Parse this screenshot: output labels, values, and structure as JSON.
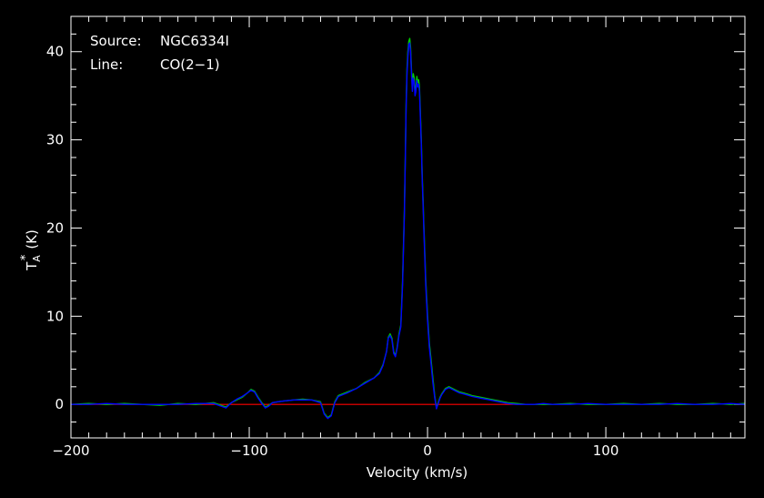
{
  "chart_data": {
    "type": "line",
    "title": "",
    "annotations": [
      {
        "key": "Source:",
        "value": "NGC6334I"
      },
      {
        "key": "Line:",
        "value": "CO(2−1)"
      }
    ],
    "xlabel": "Velocity (km/s)",
    "ylabel": {
      "base": "T",
      "subscript": "A",
      "superscript": "*",
      "unit": "(K)"
    },
    "xlim": [
      -200,
      178
    ],
    "ylim": [
      -3.8,
      44
    ],
    "grid": false,
    "background": "#000000",
    "axis_color": "#ffffff",
    "x_ticks": {
      "major": [
        -200,
        -100,
        0,
        100
      ],
      "labels": [
        "−200",
        "−100",
        "0",
        "100"
      ],
      "minor_step": 10
    },
    "y_ticks": {
      "major": [
        0,
        10,
        20,
        30,
        40
      ],
      "labels": [
        "0",
        "10",
        "20",
        "30",
        "40"
      ],
      "minor_step": 2
    },
    "baseline": {
      "name": "baseline",
      "color": "#ff0000",
      "x": [
        -200,
        60
      ],
      "y": [
        0,
        0
      ]
    },
    "series": [
      {
        "color": "#00cc00",
        "x": [
          -200,
          -190,
          -180,
          -170,
          -160,
          -150,
          -140,
          -130,
          -120,
          -113,
          -110,
          -107,
          -104,
          -101,
          -99,
          -97,
          -95,
          -93,
          -91,
          -89,
          -87,
          -84,
          -80,
          -75,
          -70,
          -65,
          -60,
          -58,
          -56,
          -54,
          -52,
          -50,
          -45,
          -40,
          -35,
          -30,
          -27,
          -25,
          -23,
          -22,
          -21,
          -20,
          -19,
          -18,
          -17,
          -16,
          -15,
          -14,
          -13,
          -12.5,
          -12,
          -11.5,
          -11,
          -10.5,
          -10,
          -9.5,
          -9,
          -8.5,
          -8,
          -7.5,
          -7,
          -6.5,
          -6,
          -5.5,
          -5,
          -4.5,
          -4,
          -3.5,
          -3,
          -2.5,
          -2,
          -1.5,
          -1,
          0,
          1,
          2,
          3,
          4,
          5,
          6,
          7,
          8,
          9,
          10,
          12,
          14,
          16,
          18,
          20,
          25,
          30,
          35,
          40,
          45,
          50,
          55,
          60,
          65,
          70,
          80,
          90,
          100,
          110,
          120,
          130,
          140,
          150,
          160,
          170,
          178
        ],
        "y": [
          0,
          0.1,
          0,
          0.1,
          0,
          -0.1,
          0.1,
          0,
          0.2,
          -0.3,
          0.2,
          0.5,
          0.8,
          1.3,
          1.7,
          1.5,
          0.8,
          0.2,
          -0.3,
          -0.1,
          0.2,
          0.3,
          0.4,
          0.5,
          0.6,
          0.5,
          0.3,
          -1.0,
          -1.5,
          -1.2,
          0.3,
          1.0,
          1.4,
          1.8,
          2.5,
          3.0,
          3.6,
          4.5,
          6.0,
          7.6,
          8.0,
          7.5,
          6.0,
          5.5,
          6.5,
          8.0,
          9.0,
          14.0,
          22.0,
          28.0,
          34.0,
          38.0,
          40.0,
          41.2,
          41.5,
          40.5,
          38.0,
          36.0,
          37.5,
          37.0,
          35.5,
          36.0,
          37.2,
          36.5,
          36.8,
          36.0,
          33.0,
          30.0,
          26.0,
          23.0,
          20.0,
          17.0,
          14.0,
          10.0,
          7.0,
          5.0,
          3.0,
          1.0,
          -0.4,
          0.2,
          0.8,
          1.2,
          1.5,
          1.8,
          2.0,
          1.8,
          1.6,
          1.4,
          1.3,
          1.0,
          0.8,
          0.6,
          0.4,
          0.2,
          0.1,
          0,
          0,
          0,
          0,
          0.1,
          0,
          0,
          0.1,
          0,
          0.1,
          0,
          0,
          0.1,
          0,
          0.1
        ]
      },
      {
        "color": "#0000ff",
        "x": [
          -200,
          -190,
          -180,
          -170,
          -160,
          -150,
          -140,
          -130,
          -120,
          -113,
          -110,
          -107,
          -104,
          -101,
          -99,
          -97,
          -95,
          -93,
          -91,
          -89,
          -87,
          -84,
          -80,
          -75,
          -70,
          -65,
          -60,
          -58,
          -56,
          -54,
          -52,
          -50,
          -45,
          -40,
          -35,
          -30,
          -27,
          -25,
          -23,
          -22,
          -21,
          -20,
          -19,
          -18,
          -17,
          -16,
          -15,
          -14,
          -13,
          -12.5,
          -12,
          -11.5,
          -11,
          -10.5,
          -10,
          -9.5,
          -9,
          -8.5,
          -8,
          -7.5,
          -7,
          -6.5,
          -6,
          -5.5,
          -5,
          -4.5,
          -4,
          -3.5,
          -3,
          -2.5,
          -2,
          -1.5,
          -1,
          0,
          1,
          2,
          3,
          4,
          5,
          6,
          7,
          8,
          9,
          10,
          12,
          14,
          16,
          18,
          20,
          25,
          30,
          35,
          40,
          45,
          50,
          55,
          60,
          65,
          70,
          80,
          90,
          100,
          110,
          120,
          130,
          140,
          150,
          160,
          170,
          178
        ],
        "y": [
          0,
          0,
          0.1,
          0,
          0,
          0,
          0,
          0.1,
          0.1,
          -0.4,
          0.2,
          0.6,
          0.9,
          1.3,
          1.6,
          1.4,
          0.7,
          0.1,
          -0.4,
          -0.2,
          0.2,
          0.3,
          0.4,
          0.5,
          0.5,
          0.5,
          0.2,
          -1.1,
          -1.6,
          -1.3,
          0.2,
          0.9,
          1.3,
          1.8,
          2.4,
          3.0,
          3.5,
          4.4,
          6.0,
          7.5,
          7.8,
          7.3,
          5.8,
          5.4,
          6.4,
          7.8,
          8.8,
          13.5,
          21.5,
          27.5,
          33.5,
          37.5,
          39.5,
          40.8,
          41.0,
          40.0,
          37.5,
          35.5,
          37.0,
          36.5,
          35.0,
          35.5,
          36.7,
          36.0,
          36.3,
          35.5,
          32.5,
          29.5,
          25.5,
          22.5,
          19.5,
          16.5,
          13.5,
          9.5,
          6.5,
          4.5,
          2.5,
          0.8,
          -0.5,
          0.1,
          0.7,
          1.1,
          1.4,
          1.7,
          1.9,
          1.7,
          1.5,
          1.3,
          1.2,
          0.9,
          0.7,
          0.5,
          0.3,
          0.1,
          0,
          0,
          0,
          0.1,
          0,
          0,
          0.1,
          0,
          0,
          0,
          0,
          0.1,
          0,
          0,
          0.1,
          0
        ]
      }
    ]
  }
}
